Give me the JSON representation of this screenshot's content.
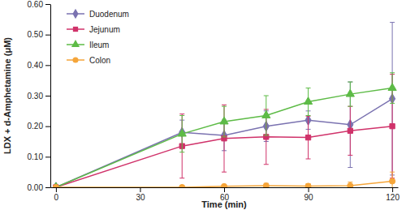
{
  "chart_data": {
    "type": "line",
    "xlabel": "Time (min)",
    "ylabel": "LDX + d-Amphetamine (μM)",
    "x": [
      0,
      45,
      60,
      75,
      90,
      105,
      120
    ],
    "xlim": [
      -2,
      122
    ],
    "xticks": [
      0,
      30,
      60,
      90,
      120
    ],
    "ylim": [
      0,
      0.6
    ],
    "yticks": [
      {
        "value": 0,
        "label": "0.00"
      },
      {
        "value": 0.1,
        "label": "0.10"
      },
      {
        "value": 0.2,
        "label": "0.20"
      },
      {
        "value": 0.3,
        "label": "0.30"
      },
      {
        "value": 0.4,
        "label": "0.40"
      },
      {
        "value": 0.5,
        "label": "0.50"
      },
      {
        "value": 0.6,
        "label": "0.60"
      }
    ],
    "grid": false,
    "legend": "upper left",
    "series": [
      {
        "name": "Duodenum",
        "color": "#7a72b0",
        "marker": "diamond",
        "values": [
          0,
          0.18,
          0.17,
          0.2,
          0.22,
          0.205,
          0.29
        ],
        "errors": [
          0,
          0.04,
          0.05,
          0.05,
          0.03,
          0.14,
          0.25
        ]
      },
      {
        "name": "Jejunum",
        "color": "#d0326a",
        "marker": "square",
        "values": [
          0,
          0.135,
          0.16,
          0.165,
          0.163,
          0.185,
          0.2
        ],
        "errors": [
          0,
          0.105,
          0.11,
          0.09,
          0.07,
          0.08,
          0.17
        ]
      },
      {
        "name": "Ileum",
        "color": "#5dbb46",
        "marker": "triangle",
        "values": [
          0,
          0.175,
          0.215,
          0.235,
          0.28,
          0.305,
          0.325
        ],
        "errors": [
          0,
          0.06,
          0.05,
          0.065,
          0.045,
          0.04,
          0.05
        ]
      },
      {
        "name": "Colon",
        "color": "#f5a53a",
        "marker": "circle",
        "values": [
          0,
          0.0,
          0.003,
          0.005,
          0.004,
          0.005,
          0.02
        ],
        "errors": [
          0,
          0.005,
          0.005,
          0.008,
          0.008,
          0.012,
          0.03
        ]
      }
    ]
  }
}
